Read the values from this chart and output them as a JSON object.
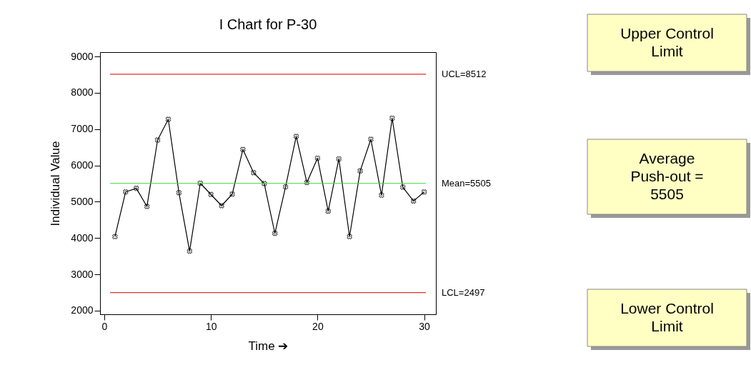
{
  "chart_data": {
    "type": "line",
    "title": "I Chart for P-30",
    "xlabel": "Time ➔",
    "ylabel": "Individual Value",
    "x": [
      1,
      2,
      3,
      4,
      5,
      6,
      7,
      8,
      9,
      10,
      11,
      12,
      13,
      14,
      15,
      16,
      17,
      18,
      19,
      20,
      21,
      22,
      23,
      24,
      25,
      26,
      27,
      28,
      29,
      30
    ],
    "series": [
      {
        "color": "#000000",
        "values": [
          4040,
          5270,
          5370,
          4870,
          6700,
          7270,
          5250,
          3640,
          5510,
          5200,
          4890,
          5210,
          6440,
          5800,
          5500,
          4130,
          5410,
          6800,
          5530,
          6200,
          4740,
          6180,
          4040,
          5850,
          6720,
          5180,
          7300,
          5400,
          5020,
          5270
        ]
      }
    ],
    "marker": "cross",
    "grid": false,
    "xlim": [
      -0.4,
      31.1
    ],
    "xticks": [
      0,
      10,
      20,
      30
    ],
    "ylim": [
      1900,
      9120
    ],
    "yticks": [
      2000,
      3000,
      4000,
      5000,
      6000,
      7000,
      8000,
      9000
    ],
    "ref_lines": [
      {
        "axis": "y",
        "value": 8512,
        "label": "UCL=8512",
        "color": "#e03030"
      },
      {
        "axis": "y",
        "value": 5505,
        "label": "Mean=5505",
        "color": "#33dd33"
      },
      {
        "axis": "y",
        "value": 2497,
        "label": "LCL=2497",
        "color": "#e03030"
      }
    ],
    "annotations": [
      "Upper Control\nLimit",
      "Average\nPush-out =\n5505",
      "Lower Control\nLimit"
    ]
  }
}
